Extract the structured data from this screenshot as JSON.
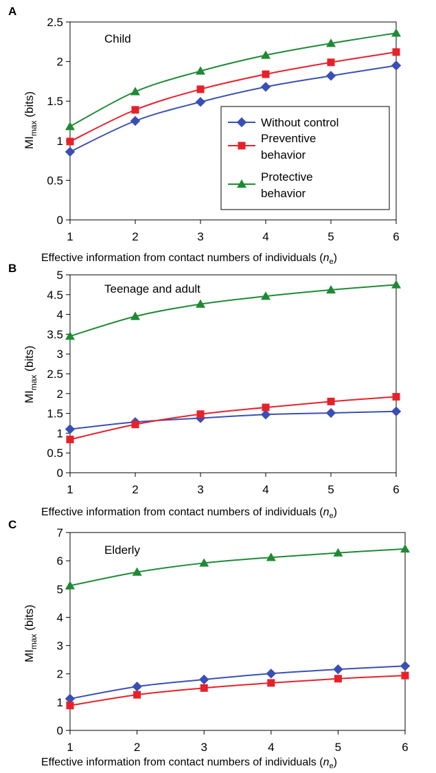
{
  "chart_data": [
    {
      "type": "line",
      "panel_label": "A",
      "annotation": "Child",
      "ylabel": "MI",
      "ylabel_sub": "max",
      "ylabel_unit": " (bits)",
      "xlabel": "Effective information from contact numbers of individuals (",
      "xlabel_var": "n",
      "xlabel_sub": "e",
      "xlabel_end": ")",
      "x": [
        1,
        2,
        3,
        4,
        5,
        6
      ],
      "xlim": [
        1,
        6
      ],
      "ylim": [
        0,
        2.5
      ],
      "yticks": [
        "0",
        "0.5",
        "1",
        "1.5",
        "2",
        "2.5"
      ],
      "xticks": [
        "1",
        "2",
        "3",
        "4",
        "5",
        "6"
      ],
      "grid": false,
      "legend": "inside-right",
      "series": [
        {
          "name": "Without control",
          "color": "#3a4fb3",
          "marker": "diamond",
          "values": [
            0.86,
            1.25,
            1.49,
            1.68,
            1.82,
            1.95
          ]
        },
        {
          "name": "Preventive behavior",
          "color": "#e8202a",
          "marker": "square",
          "values": [
            0.99,
            1.39,
            1.65,
            1.84,
            1.99,
            2.12
          ]
        },
        {
          "name": "Protective behavior",
          "color": "#1e8a35",
          "marker": "triangle",
          "values": [
            1.18,
            1.62,
            1.88,
            2.08,
            2.23,
            2.36
          ]
        }
      ]
    },
    {
      "type": "line",
      "panel_label": "B",
      "annotation": "Teenage and adult",
      "ylabel": "MI",
      "ylabel_sub": "max",
      "ylabel_unit": " (bits)",
      "xlabel": "Effective information from contact numbers of individuals (",
      "xlabel_var": "n",
      "xlabel_sub": "e",
      "xlabel_end": ")",
      "x": [
        1,
        2,
        3,
        4,
        5,
        6
      ],
      "xlim": [
        1,
        6
      ],
      "ylim": [
        0,
        5
      ],
      "yticks": [
        "0",
        "0.5",
        "1",
        "1.5",
        "2",
        "2.5",
        "3",
        "3.5",
        "4",
        "4.5",
        "5"
      ],
      "xticks": [
        "1",
        "2",
        "3",
        "4",
        "5",
        "6"
      ],
      "grid": false,
      "series": [
        {
          "color": "#3a4fb3",
          "marker": "diamond",
          "values": [
            1.1,
            1.28,
            1.38,
            1.47,
            1.51,
            1.55
          ]
        },
        {
          "color": "#e8202a",
          "marker": "square",
          "values": [
            0.84,
            1.22,
            1.48,
            1.65,
            1.8,
            1.92
          ]
        },
        {
          "color": "#1e8a35",
          "marker": "triangle",
          "values": [
            3.45,
            3.95,
            4.26,
            4.46,
            4.62,
            4.75
          ]
        }
      ]
    },
    {
      "type": "line",
      "panel_label": "C",
      "annotation": "Elderly",
      "ylabel": "MI",
      "ylabel_sub": "max",
      "ylabel_unit": " (bits)",
      "xlabel": "Effective information from contact numbers of individuals (",
      "xlabel_var": "n",
      "xlabel_sub": "e",
      "xlabel_end": ")",
      "x": [
        1,
        2,
        3,
        4,
        5,
        6
      ],
      "xlim": [
        1,
        6
      ],
      "ylim": [
        0,
        7
      ],
      "yticks": [
        "0",
        "1",
        "2",
        "3",
        "4",
        "5",
        "6",
        "7"
      ],
      "xticks": [
        "1",
        "2",
        "3",
        "4",
        "5",
        "6"
      ],
      "grid": false,
      "series": [
        {
          "color": "#3a4fb3",
          "marker": "diamond",
          "values": [
            1.12,
            1.55,
            1.8,
            2.01,
            2.16,
            2.28
          ]
        },
        {
          "color": "#e8202a",
          "marker": "square",
          "values": [
            0.88,
            1.26,
            1.5,
            1.68,
            1.83,
            1.94
          ]
        },
        {
          "color": "#1e8a35",
          "marker": "triangle",
          "values": [
            5.12,
            5.6,
            5.92,
            6.12,
            6.28,
            6.42
          ]
        }
      ]
    }
  ]
}
